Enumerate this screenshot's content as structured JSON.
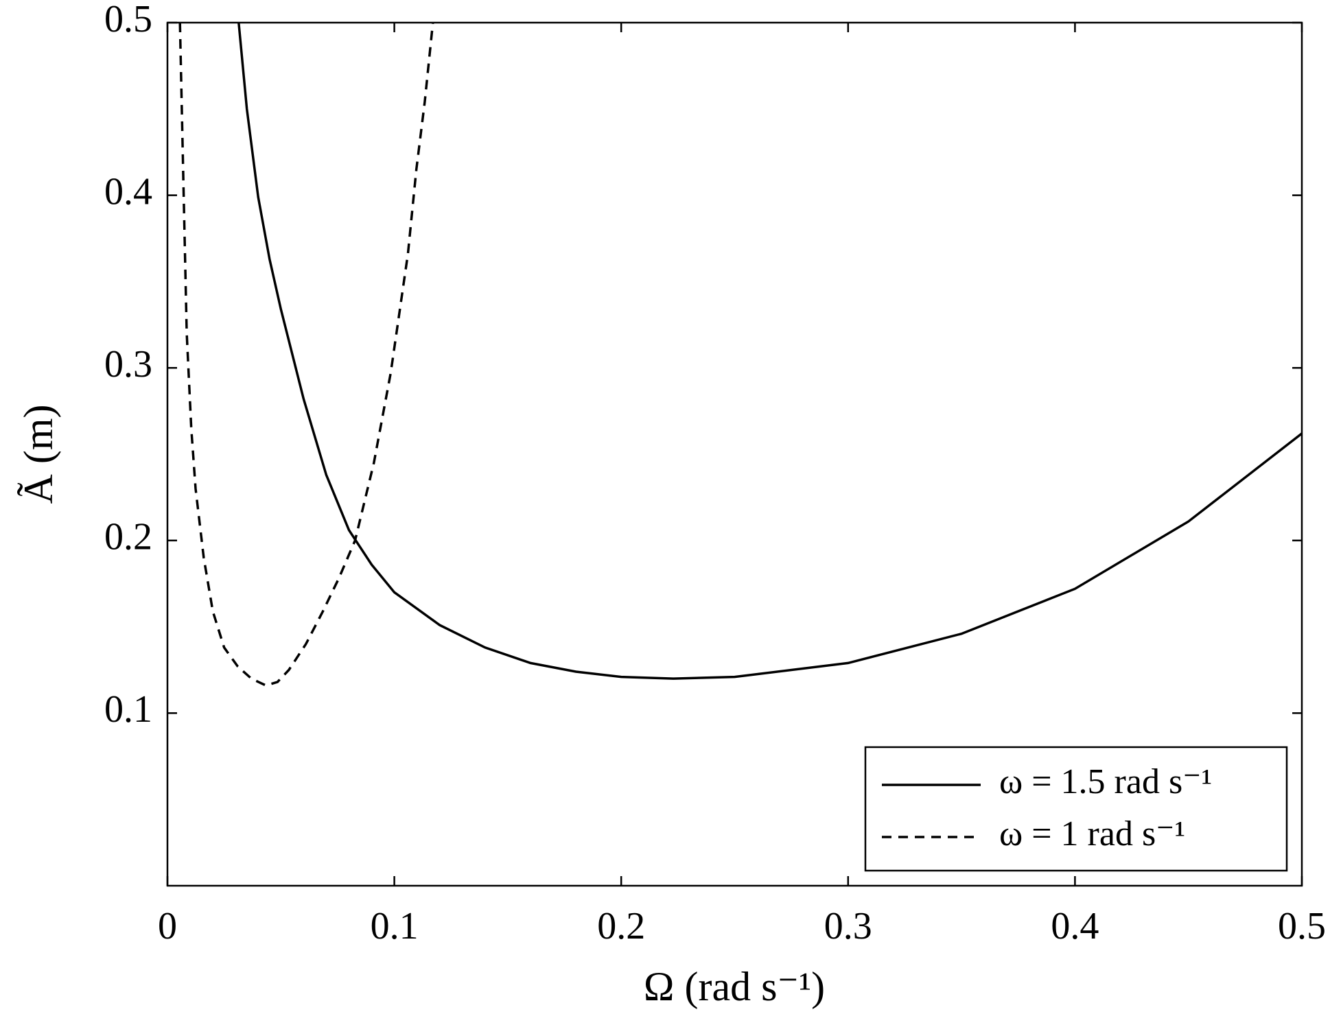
{
  "chart_data": {
    "type": "line",
    "x_label": "Ω (rad s⁻¹)",
    "y_label": "Ã (m)",
    "xlim": [
      0,
      0.5
    ],
    "ylim": [
      0,
      0.5
    ],
    "xticks": [
      0,
      0.1,
      0.2,
      0.3,
      0.4,
      0.5
    ],
    "yticks": [
      0.1,
      0.2,
      0.3,
      0.4,
      0.5
    ],
    "legend": "lower right",
    "series": [
      {
        "name": "ω = 1.5 rad s⁻¹",
        "color": "#000000",
        "dash": "solid",
        "x": [
          0.0314,
          0.035,
          0.04,
          0.045,
          0.05,
          0.06,
          0.07,
          0.08,
          0.09,
          0.1,
          0.12,
          0.14,
          0.16,
          0.18,
          0.2,
          0.223,
          0.25,
          0.3,
          0.35,
          0.4,
          0.45,
          0.5
        ],
        "values": [
          0.5,
          0.45,
          0.399,
          0.363,
          0.334,
          0.282,
          0.238,
          0.206,
          0.186,
          0.17,
          0.151,
          0.138,
          0.129,
          0.124,
          0.121,
          0.12,
          0.121,
          0.129,
          0.146,
          0.172,
          0.211,
          0.262
        ]
      },
      {
        "name": "ω = 1 rad s⁻¹",
        "color": "#000000",
        "dash": "dashed",
        "x": [
          0.0055,
          0.007,
          0.0085,
          0.0105,
          0.0124,
          0.016,
          0.02,
          0.025,
          0.031,
          0.037,
          0.0434,
          0.0485,
          0.0535,
          0.061,
          0.0685,
          0.0755,
          0.0827,
          0.091,
          0.0984,
          0.106,
          0.1097,
          0.1134,
          0.117
        ],
        "values": [
          0.5,
          0.41,
          0.32,
          0.265,
          0.23,
          0.19,
          0.159,
          0.138,
          0.127,
          0.12,
          0.116,
          0.118,
          0.125,
          0.14,
          0.159,
          0.178,
          0.2,
          0.245,
          0.297,
          0.366,
          0.415,
          0.454,
          0.5
        ]
      }
    ]
  }
}
